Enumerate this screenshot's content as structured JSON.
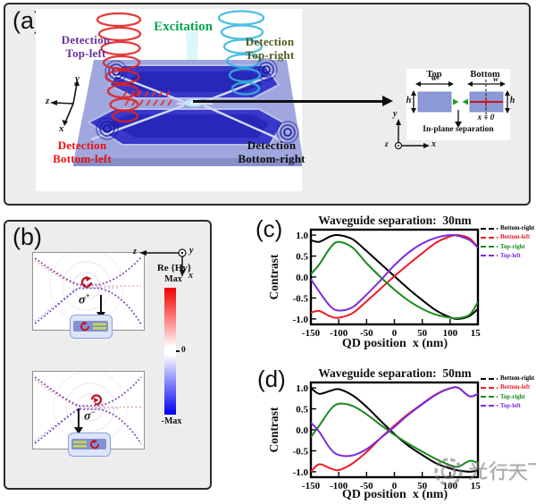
{
  "panel_a": {
    "label": "(a)",
    "excitation": "Excitation",
    "detections": {
      "top_left": {
        "line1": "Detection",
        "line2": "Top-left",
        "color": "#6b2d9e"
      },
      "top_right": {
        "line1": "Detection",
        "line2": "Top-right",
        "color": "#4d5c1d"
      },
      "bottom_left": {
        "line1": "Detection",
        "line2": "Bottom-left",
        "color": "#e8100c"
      },
      "bottom_right": {
        "line1": "Detection",
        "line2": "Bottom-right",
        "color": "#111111"
      }
    },
    "axes": {
      "x": "x",
      "y": "y",
      "z": "z"
    },
    "inset": {
      "top_label": "Top",
      "bottom_label": "Bottom",
      "width_label": "w",
      "height_label": "h",
      "x_zero": "x = 0",
      "separation": "In-plane separation",
      "axes": {
        "x": "x",
        "y": "y",
        "z": "z"
      }
    },
    "colors": {
      "excitation_green": "#00a54f",
      "spiral_red": "#df2020",
      "spiral_cyan": "#35b6e0",
      "chip_blue": "#3030c8"
    }
  },
  "panel_b": {
    "label": "(b)",
    "sigma_plus": {
      "base": "σ",
      "sup": "+"
    },
    "sigma_minus": {
      "base": "σ",
      "sup": "−"
    },
    "axes": {
      "x": "x",
      "y": "y",
      "z": "z"
    },
    "colorbar": {
      "title": "Re {Hy}",
      "max": "Max",
      "zero": "0",
      "min": "-Max",
      "top_color": "#f00000",
      "bottom_color": "#0000f0"
    }
  },
  "chart_data": [
    {
      "type": "line",
      "panel_label": "(c)",
      "title": "Waveguide separation:  30nm",
      "xlabel": "QD position  x (nm)",
      "ylabel": "Contrast",
      "xlim": [
        -150,
        150
      ],
      "ylim": [
        -1.13,
        1.13
      ],
      "xticks": [
        "-150",
        "-100",
        "-50",
        "0",
        "50",
        "100",
        "150"
      ],
      "yticks": [
        "1.0",
        "0.5",
        "0.0",
        "-0.5",
        "-1.0"
      ],
      "grid": false,
      "legend_position": "outside-right",
      "x": [
        -150,
        -135,
        -115,
        -100,
        -75,
        -50,
        -25,
        0,
        25,
        50,
        75,
        100,
        115,
        135,
        150
      ],
      "series": [
        {
          "name": "Bottom-right",
          "color": "#000000",
          "values": [
            0.88,
            0.84,
            0.97,
            1.0,
            0.9,
            0.62,
            0.32,
            0.02,
            -0.28,
            -0.55,
            -0.8,
            -0.96,
            -1.0,
            -0.93,
            -0.76
          ]
        },
        {
          "name": "Bottom-left",
          "color": "#ec1c24",
          "values": [
            -0.85,
            -0.81,
            -0.94,
            -0.97,
            -0.86,
            -0.58,
            -0.28,
            0.02,
            0.3,
            0.57,
            0.82,
            0.97,
            1.0,
            0.92,
            0.7
          ]
        },
        {
          "name": "Top-right",
          "color": "#1c8a1c",
          "values": [
            0.07,
            0.3,
            0.7,
            0.84,
            0.7,
            0.33,
            0.0,
            -0.3,
            -0.56,
            -0.76,
            -0.9,
            -0.97,
            -0.98,
            -0.9,
            -0.6
          ]
        },
        {
          "name": "Top-left",
          "color": "#7a2be2",
          "values": [
            -0.05,
            -0.35,
            -0.7,
            -0.8,
            -0.72,
            -0.42,
            -0.08,
            0.28,
            0.58,
            0.8,
            0.94,
            1.0,
            0.98,
            0.88,
            0.7
          ]
        }
      ]
    },
    {
      "type": "line",
      "panel_label": "(d)",
      "title": "Waveguide separation:  50nm",
      "xlabel": "QD position  x (nm)",
      "ylabel": "Contrast",
      "xlim": [
        -150,
        150
      ],
      "ylim": [
        -1.13,
        1.13
      ],
      "xticks": [
        "-150",
        "-100",
        "-50",
        "0",
        "50",
        "100",
        "150"
      ],
      "yticks": [
        "1.0",
        "0.5",
        "0.0",
        "-0.5",
        "-1.0"
      ],
      "grid": false,
      "legend_position": "outside-right",
      "x": [
        -150,
        -135,
        -115,
        -100,
        -75,
        -50,
        -25,
        0,
        25,
        50,
        75,
        100,
        115,
        135,
        150
      ],
      "series": [
        {
          "name": "Bottom-right",
          "color": "#000000",
          "values": [
            1.0,
            0.86,
            0.93,
            0.97,
            0.82,
            0.55,
            0.22,
            -0.1,
            -0.38,
            -0.6,
            -0.8,
            -0.92,
            -0.97,
            -1.0,
            -0.97
          ]
        },
        {
          "name": "Bottom-left",
          "color": "#ec1c24",
          "values": [
            -1.0,
            -0.82,
            -0.92,
            -0.96,
            -0.8,
            -0.53,
            -0.2,
            0.1,
            0.38,
            0.62,
            0.85,
            0.99,
            1.0,
            0.8,
            0.86
          ]
        },
        {
          "name": "Top-right",
          "color": "#1c8a1c",
          "values": [
            -0.17,
            0.1,
            0.48,
            0.62,
            0.57,
            0.37,
            0.12,
            -0.12,
            -0.33,
            -0.52,
            -0.7,
            -0.84,
            -0.88,
            -0.74,
            -0.79
          ]
        },
        {
          "name": "Top-left",
          "color": "#7a2be2",
          "values": [
            0.17,
            -0.05,
            -0.45,
            -0.6,
            -0.61,
            -0.46,
            -0.2,
            0.07,
            0.36,
            0.61,
            0.84,
            0.99,
            1.0,
            0.8,
            0.86
          ]
        }
      ]
    }
  ],
  "watermark": {
    "text": "光行天下"
  }
}
